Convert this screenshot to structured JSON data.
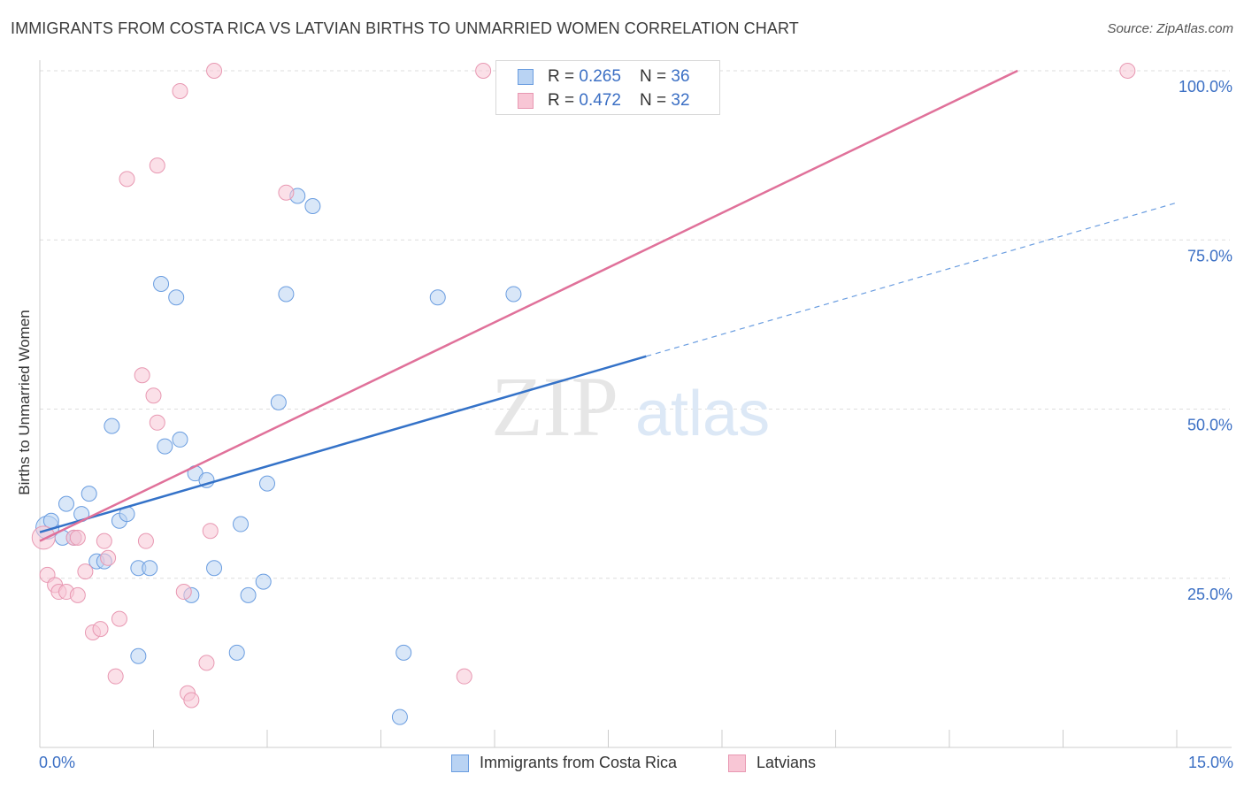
{
  "title": "IMMIGRANTS FROM COSTA RICA VS LATVIAN BIRTHS TO UNMARRIED WOMEN CORRELATION CHART",
  "source": "Source: ZipAtlas.com",
  "watermark": {
    "zip": "ZIP",
    "atlas": "atlas"
  },
  "legend": {
    "series1": {
      "r_label": "R = ",
      "r_value": "0.265",
      "n_label": "N = ",
      "n_value": "36"
    },
    "series2": {
      "r_label": "R = ",
      "r_value": "0.472",
      "n_label": "N = ",
      "n_value": "32"
    }
  },
  "x_tick_labels": {
    "left": "0.0%",
    "right": "15.0%"
  },
  "colors": {
    "blue_fill": "#b9d3f3",
    "blue_stroke": "#6a9de0",
    "blue_line": "#3472c8",
    "pink_fill": "#f8c6d5",
    "pink_stroke": "#e898b2",
    "pink_line": "#e0719a",
    "grid": "#dddddd",
    "axis_text": "#3b6fc4"
  },
  "chart_data": {
    "type": "scatter",
    "title": "IMMIGRANTS FROM COSTA RICA VS LATVIAN BIRTHS TO UNMARRIED WOMEN CORRELATION CHART",
    "xlabel": "",
    "ylabel": "Births to Unmarried Women",
    "xlim": [
      0,
      15
    ],
    "ylim": [
      0,
      100
    ],
    "y_ticks": [
      25,
      50,
      75,
      100
    ],
    "y_tick_labels": [
      "25.0%",
      "50.0%",
      "75.0%",
      "100.0%"
    ],
    "grid": true,
    "legend_position": "top-center",
    "series": [
      {
        "name": "Immigrants from Costa Rica",
        "color": "#6a9de0",
        "points": [
          [
            0.1,
            32.5
          ],
          [
            0.15,
            33.5
          ],
          [
            0.35,
            36
          ],
          [
            0.3,
            31
          ],
          [
            0.45,
            31
          ],
          [
            0.55,
            34.5
          ],
          [
            0.65,
            37.5
          ],
          [
            0.75,
            27.5
          ],
          [
            0.85,
            27.5
          ],
          [
            0.95,
            47.5
          ],
          [
            1.05,
            33.5
          ],
          [
            1.15,
            34.5
          ],
          [
            1.3,
            26.5
          ],
          [
            1.45,
            26.5
          ],
          [
            1.3,
            13.5
          ],
          [
            1.6,
            68.5
          ],
          [
            1.65,
            44.5
          ],
          [
            1.8,
            66.5
          ],
          [
            1.85,
            45.5
          ],
          [
            2.0,
            22.5
          ],
          [
            2.05,
            40.5
          ],
          [
            2.2,
            39.5
          ],
          [
            2.3,
            26.5
          ],
          [
            2.6,
            14
          ],
          [
            2.65,
            33
          ],
          [
            2.75,
            22.5
          ],
          [
            2.95,
            24.5
          ],
          [
            3.0,
            39
          ],
          [
            3.15,
            51
          ],
          [
            3.25,
            67
          ],
          [
            3.4,
            81.5
          ],
          [
            3.6,
            80
          ],
          [
            4.8,
            14
          ],
          [
            4.75,
            4.5
          ],
          [
            5.25,
            66.5
          ],
          [
            6.25,
            67
          ]
        ],
        "trend": {
          "x0": 0,
          "y0": 31.8,
          "x1": 8,
          "y1": 57.8,
          "dashed_to": 15,
          "y_dashed": 80.5
        }
      },
      {
        "name": "Latvians",
        "color": "#e898b2",
        "points": [
          [
            0.05,
            31
          ],
          [
            0.1,
            25.5
          ],
          [
            0.2,
            24
          ],
          [
            0.25,
            23
          ],
          [
            0.35,
            23
          ],
          [
            0.45,
            31
          ],
          [
            0.5,
            22.5
          ],
          [
            0.6,
            26
          ],
          [
            0.7,
            17
          ],
          [
            0.8,
            17.5
          ],
          [
            0.85,
            30.5
          ],
          [
            0.9,
            28
          ],
          [
            1.0,
            10.5
          ],
          [
            1.05,
            19
          ],
          [
            1.15,
            84
          ],
          [
            1.35,
            55
          ],
          [
            1.4,
            30.5
          ],
          [
            1.5,
            52
          ],
          [
            1.55,
            48
          ],
          [
            1.55,
            86
          ],
          [
            1.85,
            97
          ],
          [
            1.9,
            23
          ],
          [
            1.95,
            8
          ],
          [
            2.0,
            7
          ],
          [
            2.2,
            12.5
          ],
          [
            2.25,
            32
          ],
          [
            2.3,
            100
          ],
          [
            3.25,
            82
          ],
          [
            5.6,
            10.5
          ],
          [
            5.85,
            100
          ],
          [
            14.35,
            100
          ],
          [
            0.5,
            31
          ]
        ],
        "trend": {
          "x0": 0,
          "y0": 30.5,
          "x1": 12.9,
          "y1": 100
        }
      }
    ]
  }
}
